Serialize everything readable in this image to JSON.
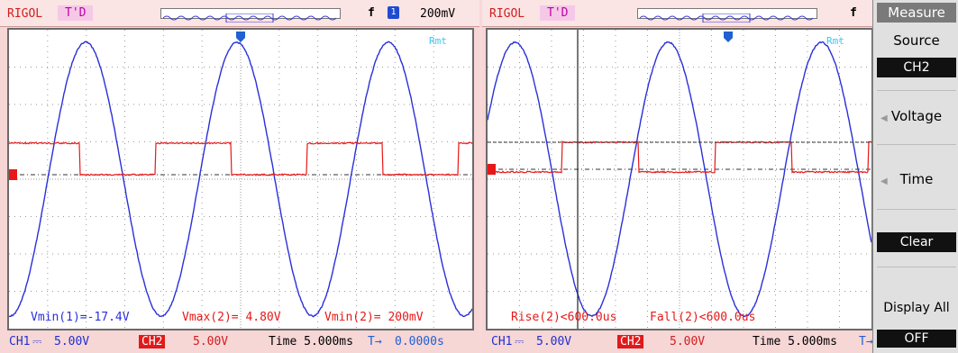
{
  "colors": {
    "ch1": "#2a30d8",
    "ch2": "#e81818",
    "grid": "#9a9a9a",
    "panel_bg": "#f7d6d6",
    "cursor": "#222222"
  },
  "left": {
    "brand": "RIGOL",
    "trigger_status": "T'D",
    "slope_symbol": "f",
    "channel": "1",
    "trigger_level": "200mV",
    "remote": "Rmt",
    "ch2_marker": "2",
    "measurements": [
      {
        "label": "Vmin(1)=-17.4V",
        "color": "#2a30d8"
      },
      {
        "label": "Vmax(2)= 4.80V",
        "color": "#e81818"
      },
      {
        "label": "Vmin(2)= 200mV",
        "color": "#e81818"
      }
    ]
  },
  "right": {
    "brand": "RIGOL",
    "trigger_status": "T'D",
    "slope_symbol": "f",
    "remote": "Rmt",
    "ch2_marker": "2",
    "measurements": [
      {
        "label": "Rise(2)<600.0us",
        "color": "#e81818"
      },
      {
        "label": "Fall(2)<600.0us",
        "color": "#e81818"
      }
    ]
  },
  "bottom": {
    "ch1": "CH1",
    "ch1_scale": "5.00V",
    "ch2": "CH2",
    "ch2_scale": "5.00V",
    "time": "Time 5.000ms",
    "trig_offset": "0.0000s"
  },
  "menu": {
    "title": "Measure",
    "source_label": "Source",
    "source_value": "CH2",
    "voltage": "Voltage",
    "time": "Time",
    "clear": "Clear",
    "display_all": "Display All",
    "display_all_value": "OFF"
  }
}
